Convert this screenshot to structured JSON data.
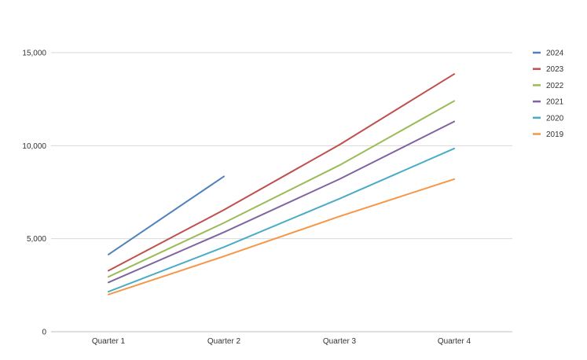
{
  "chart_data": {
    "type": "line",
    "title": "",
    "xlabel": "",
    "ylabel": "",
    "categories": [
      "Quarter 1",
      "Quarter 2",
      "Quarter 3",
      "Quarter 4"
    ],
    "ylim": [
      0,
      15000
    ],
    "yticks": [
      0,
      5000,
      10000,
      15000
    ],
    "ytick_labels": [
      "0",
      "5,000",
      "10,000",
      "15,000"
    ],
    "grid": true,
    "legend_position": "right",
    "series": [
      {
        "name": "2024",
        "color": "#4f81bd",
        "values": [
          4150,
          8350,
          null,
          null
        ]
      },
      {
        "name": "2023",
        "color": "#c0504d",
        "values": [
          3280,
          6550,
          10050,
          13850
        ]
      },
      {
        "name": "2022",
        "color": "#9bbb59",
        "values": [
          2950,
          5850,
          8950,
          12400
        ]
      },
      {
        "name": "2021",
        "color": "#8064a2",
        "values": [
          2650,
          5350,
          8200,
          11300
        ]
      },
      {
        "name": "2020",
        "color": "#4bacc6",
        "values": [
          2150,
          4550,
          7150,
          9850
        ]
      },
      {
        "name": "2019",
        "color": "#f79646",
        "values": [
          2000,
          4050,
          6200,
          8200
        ]
      }
    ]
  }
}
